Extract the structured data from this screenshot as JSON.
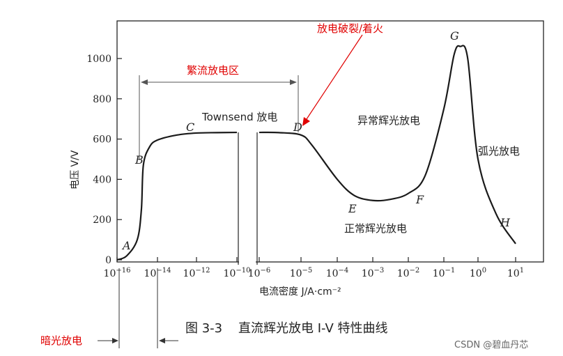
{
  "chart_data": {
    "type": "line",
    "caption": "图 3-3    直流辉光放电 I-V 特性曲线",
    "ylabel": "电压 V/V",
    "xlabel": "电流密度 J/A·cm⁻²",
    "y_ticks": [
      "0",
      "200",
      "400",
      "600",
      "800",
      "1000"
    ],
    "x_ticks": [
      {
        "base": "10",
        "exp": "-16"
      },
      {
        "base": "10",
        "exp": "-14"
      },
      {
        "base": "10",
        "exp": "-12"
      },
      {
        "base": "10",
        "exp": "-10"
      },
      {
        "base": "10",
        "exp": "-6"
      },
      {
        "base": "10",
        "exp": "-5"
      },
      {
        "base": "10",
        "exp": "-4"
      },
      {
        "base": "10",
        "exp": "-3"
      },
      {
        "base": "10",
        "exp": "-2"
      },
      {
        "base": "10",
        "exp": "-1"
      },
      {
        "base": "10",
        "exp": "0"
      },
      {
        "base": "10",
        "exp": "1"
      }
    ],
    "x_scale": "log (broken between 10^-10 and 10^-6)",
    "ylim": [
      0,
      1100
    ],
    "series": [
      {
        "points_before_break": [
          {
            "x": "1e-16",
            "y": 0
          },
          {
            "x": "3e-16",
            "y": 20
          },
          {
            "x": "1e-15",
            "y": 100
          },
          {
            "x": "1.6e-15",
            "y": 250
          },
          {
            "x": "2e-15",
            "y": 470
          },
          {
            "x": "4e-15",
            "y": 560
          },
          {
            "x": "1e-14",
            "y": 595
          },
          {
            "x": "1e-13",
            "y": 620
          },
          {
            "x": "1e-12",
            "y": 630
          },
          {
            "x": "1e-11",
            "y": 632
          },
          {
            "x": "1e-10",
            "y": 633
          }
        ],
        "points_after_break": [
          {
            "x": "1e-6",
            "y": 633
          },
          {
            "x": "3e-6",
            "y": 632
          },
          {
            "x": "1e-5",
            "y": 620
          },
          {
            "x": "2e-5",
            "y": 570
          },
          {
            "x": "1e-4",
            "y": 400
          },
          {
            "x": "3e-4",
            "y": 320
          },
          {
            "x": "1e-3",
            "y": 295
          },
          {
            "x": "3e-3",
            "y": 300
          },
          {
            "x": "1e-2",
            "y": 330
          },
          {
            "x": "3e-2",
            "y": 420
          },
          {
            "x": "1e-1",
            "y": 750
          },
          {
            "x": "2e-1",
            "y": 1020
          },
          {
            "x": "3e-1",
            "y": 1060
          },
          {
            "x": "5e-1",
            "y": 1000
          },
          {
            "x": "1e0",
            "y": 500
          },
          {
            "x": "3e0",
            "y": 230
          },
          {
            "x": "1e1",
            "y": 80
          }
        ]
      }
    ],
    "point_labels": [
      "A",
      "B",
      "C",
      "D",
      "E",
      "F",
      "G",
      "H"
    ],
    "region_labels": {
      "townsend": "Townsend 放电",
      "abnormal_glow": "异常辉光放电",
      "arc": "弧光放电",
      "normal_glow": "正常辉光放电",
      "avalanche": "繁流放电区",
      "breakdown": "放电破裂/着火",
      "dark": "暗光放电"
    },
    "colors": {
      "axis": "#222222",
      "curve": "#1a1a1a",
      "annotation": "#e00000"
    }
  },
  "watermark": "CSDN @碧血丹芯"
}
